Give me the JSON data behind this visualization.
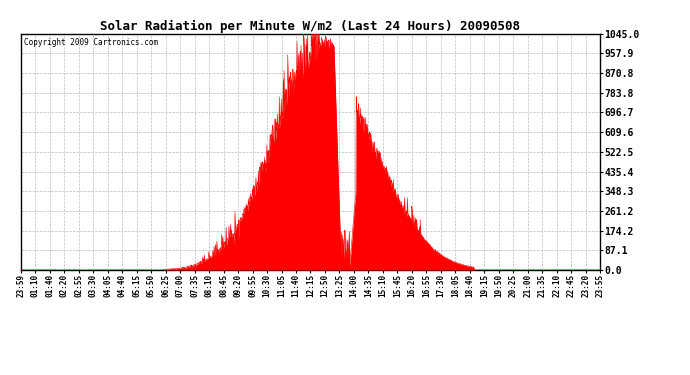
{
  "title": "Solar Radiation per Minute W/m2 (Last 24 Hours) 20090508",
  "copyright": "Copyright 2009 Cartronics.com",
  "fill_color": "#FF0000",
  "line_color": "#FF0000",
  "background_color": "#FFFFFF",
  "dashed_line_color": "#FF0000",
  "grid_color": "#BBBBBB",
  "yticks": [
    0.0,
    87.1,
    174.2,
    261.2,
    348.3,
    435.4,
    522.5,
    609.6,
    696.7,
    783.8,
    870.8,
    957.9,
    1045.0
  ],
  "ylim": [
    0.0,
    1045.0
  ],
  "xtick_labels": [
    "23:59",
    "01:10",
    "01:40",
    "02:20",
    "02:55",
    "03:30",
    "04:05",
    "04:40",
    "05:15",
    "05:50",
    "06:25",
    "07:00",
    "07:35",
    "08:10",
    "08:45",
    "09:20",
    "09:55",
    "10:30",
    "11:05",
    "11:40",
    "12:15",
    "12:50",
    "13:25",
    "14:00",
    "14:35",
    "15:10",
    "15:45",
    "16:20",
    "16:55",
    "17:30",
    "18:05",
    "18:40",
    "19:15",
    "19:50",
    "20:25",
    "21:00",
    "21:35",
    "22:10",
    "22:45",
    "23:20",
    "23:55"
  ],
  "num_points": 1440
}
